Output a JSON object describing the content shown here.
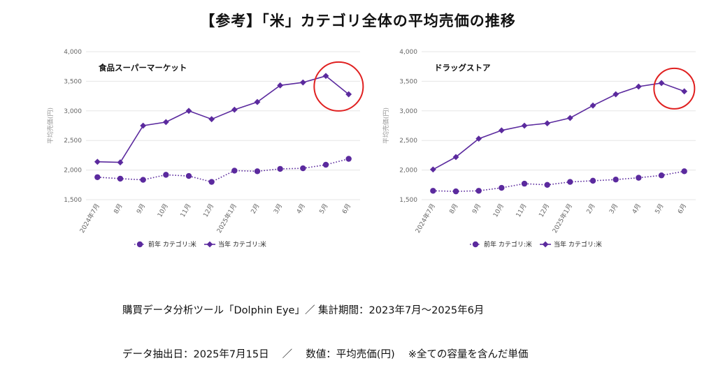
{
  "page": {
    "title": "【参考】「米」カテゴリ全体の平均売価の推移",
    "footer_line1": "購買データ分析ツール「Dolphin Eye」／ 集計期間：2023年7月～2025年6月",
    "footer_line2": "データ抽出日：2025年7月15日　 ／　 数値：平均売価(円)　 ※全ての容量を含んだ単価"
  },
  "colors": {
    "series": "#5b2a9e",
    "highlight_circle": "#e02020",
    "grid": "#e6e6e6"
  },
  "chart_data": [
    {
      "type": "line",
      "title": "食品スーパーマーケット",
      "ylabel": "平均売価(円)",
      "xlabel": "",
      "ylim": [
        1500,
        4000
      ],
      "yticks": [
        1500,
        2000,
        2500,
        3000,
        3500,
        4000
      ],
      "ytick_labels": [
        "1,500",
        "2,000",
        "2,500",
        "3,000",
        "3,500",
        "4,000"
      ],
      "categories": [
        "2024年7月",
        "8月",
        "9月",
        "10月",
        "11月",
        "12月",
        "2025年1月",
        "2月",
        "3月",
        "4月",
        "5月",
        "6月"
      ],
      "series": [
        {
          "name": "前年 カテゴリ:米",
          "marker": "circle",
          "style": "dotted",
          "values": [
            1880,
            1855,
            1835,
            1920,
            1900,
            1800,
            1990,
            1980,
            2020,
            2030,
            2090,
            2190
          ]
        },
        {
          "name": "当年 カテゴリ:米",
          "marker": "diamond",
          "style": "solid",
          "values": [
            2140,
            2130,
            2750,
            2810,
            3000,
            2860,
            3020,
            3150,
            3430,
            3480,
            3590,
            3280
          ]
        }
      ],
      "highlight": {
        "shape": "circle",
        "around": [
          "5月",
          "6月"
        ]
      },
      "grid": true,
      "legend_position": "bottom"
    },
    {
      "type": "line",
      "title": "ドラッグストア",
      "ylabel": "平均売価(円)",
      "xlabel": "",
      "ylim": [
        1500,
        4000
      ],
      "yticks": [
        1500,
        2000,
        2500,
        3000,
        3500,
        4000
      ],
      "ytick_labels": [
        "1,500",
        "2,000",
        "2,500",
        "3,000",
        "3,500",
        "4,000"
      ],
      "categories": [
        "2024年7月",
        "8月",
        "9月",
        "10月",
        "11月",
        "12月",
        "2025年1月",
        "2月",
        "3月",
        "4月",
        "5月",
        "6月"
      ],
      "series": [
        {
          "name": "前年 カテゴリ:米",
          "marker": "circle",
          "style": "dotted",
          "values": [
            1650,
            1640,
            1650,
            1700,
            1770,
            1750,
            1800,
            1820,
            1840,
            1870,
            1910,
            1980
          ]
        },
        {
          "name": "当年 カテゴリ:米",
          "marker": "diamond",
          "style": "solid",
          "values": [
            2010,
            2220,
            2530,
            2670,
            2750,
            2790,
            2880,
            3090,
            3280,
            3410,
            3470,
            3330
          ]
        }
      ],
      "highlight": {
        "shape": "circle",
        "around": [
          "5月",
          "6月"
        ]
      },
      "grid": true,
      "legend_position": "bottom"
    }
  ]
}
